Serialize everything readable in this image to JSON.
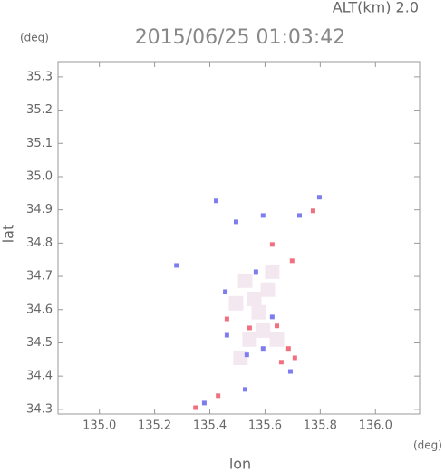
{
  "chart_data": {
    "type": "scatter",
    "subtitle": "ALT(km) 2.0",
    "title": "2015/06/25 01:03:42",
    "y_unit": "(deg)",
    "x_unit": "(deg)",
    "xlabel": "lon",
    "ylabel": "lat",
    "xlim": [
      134.85,
      136.16
    ],
    "ylim": [
      34.286,
      35.346
    ],
    "xticks": [
      {
        "value": 135.0,
        "label": "135.0"
      },
      135.2,
      135.4,
      135.6,
      135.8,
      {
        "value": 136.0,
        "label": "136.0"
      }
    ],
    "yticks": [
      34.3,
      34.4,
      34.5,
      34.6,
      34.7,
      34.8,
      34.9,
      {
        "value": 35.0,
        "label": "35.0"
      },
      35.1,
      35.2,
      35.3
    ],
    "series": [
      {
        "color": "#f4e8f0",
        "size": 16,
        "x": [
          135.561,
          135.528,
          135.61,
          135.577,
          135.495,
          135.626,
          135.643,
          135.593,
          135.544,
          135.511
        ],
        "y": [
          34.632,
          34.687,
          34.66,
          34.592,
          34.619,
          34.714,
          34.51,
          34.537,
          34.51,
          34.455
        ]
      },
      {
        "color": "#7d7df0",
        "size": 5,
        "x": [
          135.279,
          135.423,
          135.495,
          135.593,
          135.725,
          135.797,
          135.567,
          135.456,
          135.626,
          135.593,
          135.534,
          135.692,
          135.528,
          135.38,
          135.462
        ],
        "y": [
          34.733,
          34.927,
          34.864,
          34.883,
          34.883,
          34.938,
          34.714,
          34.654,
          34.578,
          34.483,
          34.464,
          34.414,
          34.36,
          34.319,
          34.523
        ]
      },
      {
        "color": "#f07080",
        "size": 5,
        "x": [
          135.626,
          135.698,
          135.462,
          135.643,
          135.685,
          135.659,
          135.708,
          135.348,
          135.43,
          135.774,
          135.544
        ],
        "y": [
          34.796,
          34.747,
          34.572,
          34.551,
          34.483,
          34.442,
          34.455,
          34.305,
          34.341,
          34.897,
          34.545
        ]
      }
    ]
  }
}
